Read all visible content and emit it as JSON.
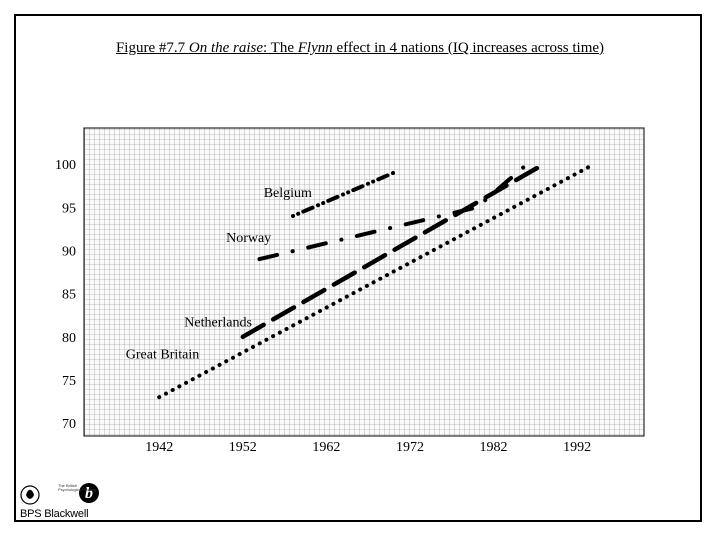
{
  "title": {
    "prefix": "Figure #7.7 ",
    "italic1": "On the raise",
    "mid": ": The ",
    "italic2": "Flynn",
    "suffix": " effect in 4 nations (IQ increases across time)"
  },
  "logo": {
    "text": "BPS Blackwell",
    "small": "The British Psychological Society"
  },
  "chart_data": {
    "type": "line",
    "title": "Figure #7.7 On the raise: The Flynn effect in 4 nations (IQ increases across time)",
    "xlabel": "",
    "ylabel": "",
    "xlim": [
      1933,
      2000
    ],
    "ylim": [
      68.5,
      104.2
    ],
    "xticks": [
      1942,
      1952,
      1962,
      1972,
      1982,
      1992
    ],
    "yticks": [
      70,
      75,
      80,
      85,
      90,
      95,
      100
    ],
    "grid": true,
    "legend": "inline labels",
    "series": [
      {
        "name": "Belgium",
        "style": "dotted-dash",
        "x": [
          1958,
          1970
        ],
        "y": [
          94,
          99
        ],
        "label_at": [
          1954.5,
          96.2
        ]
      },
      {
        "name": "Norway",
        "style": "dash-dot",
        "x": [
          1954,
          1980,
          1986
        ],
        "y": [
          89,
          95,
          100
        ],
        "label_at": [
          1950,
          91
        ]
      },
      {
        "name": "Netherlands",
        "style": "long-dash",
        "x": [
          1952,
          1988
        ],
        "y": [
          80,
          100
        ],
        "label_at": [
          1945,
          81.2
        ]
      },
      {
        "name": "Great Britain",
        "style": "dotted",
        "x": [
          1942,
          1994
        ],
        "y": [
          73,
          100
        ],
        "label_at": [
          1938,
          77.5
        ]
      }
    ]
  }
}
